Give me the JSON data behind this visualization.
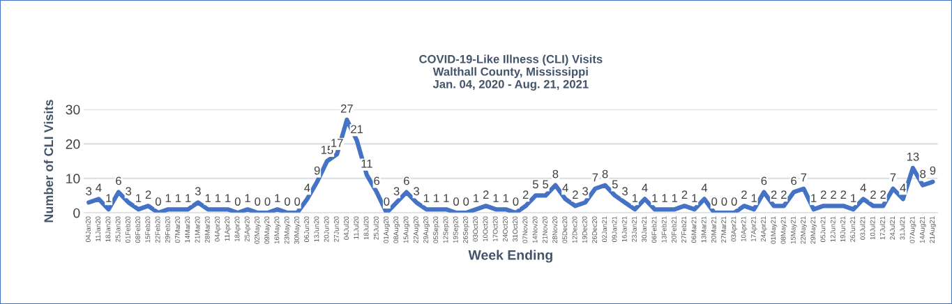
{
  "chart_data": {
    "type": "line",
    "title": "COVID-19-Like Illness (CLI) Visits\nWalthall County, Mississippi\nJan. 04, 2020 - Aug. 21, 2021",
    "xlabel": "Week Ending",
    "ylabel": "Number of CLI Visits",
    "categories": [
      "04Jan20",
      "11Jan20",
      "18Jan20",
      "25Jan20",
      "01Feb20",
      "08Feb20",
      "15Feb20",
      "22Feb20",
      "29Feb20",
      "07Mar20",
      "14Mar20",
      "21Mar20",
      "28Mar20",
      "04Apr20",
      "11Apr20",
      "18Apr20",
      "25Apr20",
      "02May20",
      "09May20",
      "16May20",
      "23May20",
      "30May20",
      "06Jun20",
      "13Jun20",
      "20Jun20",
      "27Jun20",
      "04Jul20",
      "11Jul20",
      "18Jul20",
      "25Jul20",
      "01Aug20",
      "08Aug20",
      "15Aug20",
      "22Aug20",
      "29Aug20",
      "05Sep20",
      "12Sep20",
      "19Sep20",
      "26Sep20",
      "03Oct20",
      "10Oct20",
      "17Oct20",
      "24Oct20",
      "31Oct20",
      "07Nov20",
      "14Nov20",
      "21Nov20",
      "28Nov20",
      "05Dec20",
      "12Dec20",
      "19Dec20",
      "26Dec20",
      "02Jan21",
      "09Jan21",
      "16Jan21",
      "23Jan21",
      "30Jan21",
      "06Feb21",
      "13Feb21",
      "20Feb21",
      "27Feb21",
      "06Mar21",
      "13Mar21",
      "20Mar21",
      "27Mar21",
      "03Apr21",
      "10Apr21",
      "17Apr21",
      "24Apr21",
      "01May21",
      "08May21",
      "15May21",
      "22May21",
      "29May21",
      "05Jun21",
      "12Jun21",
      "19Jun21",
      "26Jun21",
      "03Jul21",
      "10Jul21",
      "17Jul21",
      "24Jul21",
      "31Jul21",
      "07Aug21",
      "14Aug21",
      "21Aug21"
    ],
    "series": [
      {
        "color": "#4472c4",
        "values": [
          3,
          4,
          1,
          6,
          3,
          1,
          2,
          0,
          1,
          1,
          1,
          3,
          1,
          1,
          1,
          0,
          1,
          0,
          0,
          1,
          0,
          0,
          4,
          9,
          15,
          17,
          27,
          21,
          11,
          6,
          0,
          3,
          6,
          3,
          1,
          1,
          1,
          0,
          0,
          1,
          2,
          1,
          1,
          0,
          2,
          5,
          5,
          8,
          4,
          2,
          3,
          7,
          8,
          5,
          3,
          1,
          4,
          1,
          1,
          1,
          2,
          1,
          4,
          0,
          0,
          0,
          2,
          1,
          6,
          2,
          2,
          6,
          7,
          1,
          2,
          2,
          2,
          1,
          4,
          2,
          2,
          7,
          4,
          13,
          8,
          9
        ]
      }
    ],
    "ylim": [
      0,
      30
    ],
    "yticks": [
      0,
      10,
      20,
      30
    ],
    "grid": "y",
    "data_labels": true,
    "marker": "none",
    "line_style": "solid",
    "legend": false
  }
}
